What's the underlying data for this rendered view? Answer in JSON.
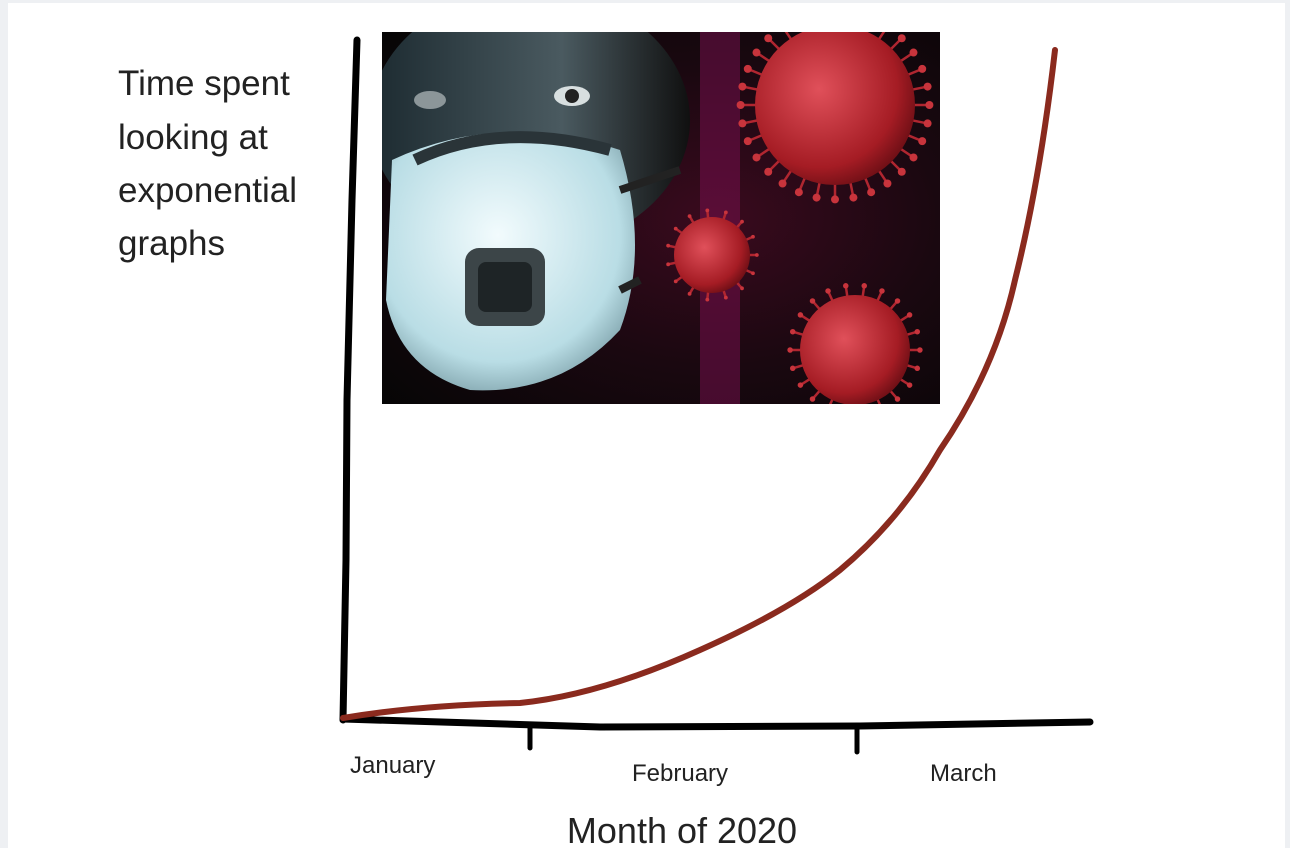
{
  "y_label": [
    "Time spent",
    "looking at",
    "exponential",
    "graphs"
  ],
  "x_labels": [
    "January",
    "February",
    "March"
  ],
  "x_title": "Month of 2020"
}
